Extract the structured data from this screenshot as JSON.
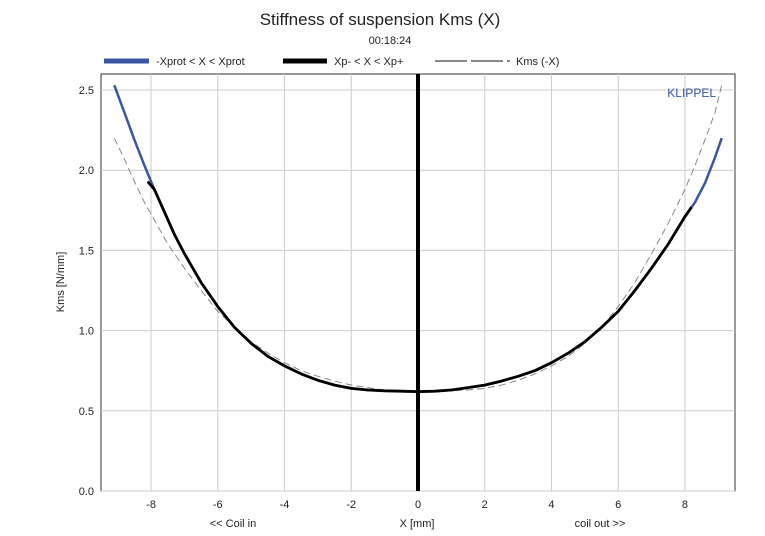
{
  "chart_data": {
    "type": "line",
    "title": "Stiffness of suspension Kms (X)",
    "subtitle": "00:18:24",
    "xlabel": "X [mm]",
    "ylabel": "Kms [N/mm]",
    "x_annotation_left": "<< Coil in",
    "x_annotation_right": "coil out >>",
    "brand": "KLIPPEL",
    "xlim": [
      -9.5,
      9.5
    ],
    "ylim": [
      0,
      2.6
    ],
    "xticks": [
      -8,
      -6,
      -4,
      -2,
      0,
      2,
      4,
      6,
      8
    ],
    "yticks": [
      0.0,
      0.5,
      1.0,
      1.5,
      2.0,
      2.5
    ],
    "xtick_labels": [
      "-8",
      "-6",
      "-4",
      "-2",
      "0",
      "2",
      "4",
      "6",
      "8"
    ],
    "ytick_labels": [
      "0.0",
      "0.5",
      "1.0",
      "1.5",
      "2.0",
      "2.5"
    ],
    "grid": true,
    "legend_position": "top",
    "colors": {
      "blue": "#3a55a4",
      "black": "#000000",
      "gray": "#888888",
      "grid": "#cccccc"
    },
    "series": [
      {
        "name": "-Xprot < X < Xprot",
        "style": "solid-blue",
        "x": [
          -9.1,
          -8.8,
          -8.5,
          -8.2,
          -7.9,
          -7.6,
          -7.3,
          -7.0,
          -6.5,
          -6.0,
          -5.5,
          -5.0,
          -4.5,
          -4.0,
          -3.5,
          -3.0,
          -2.5,
          -2.0,
          -1.5,
          -1.0,
          -0.5,
          0.0,
          0.5,
          1.0,
          1.5,
          2.0,
          2.5,
          3.0,
          3.5,
          4.0,
          4.5,
          5.0,
          5.5,
          6.0,
          6.5,
          7.0,
          7.5,
          8.0,
          8.3,
          8.6,
          8.9,
          9.1
        ],
        "y": [
          2.53,
          2.36,
          2.19,
          2.03,
          1.88,
          1.74,
          1.6,
          1.48,
          1.3,
          1.15,
          1.02,
          0.92,
          0.84,
          0.78,
          0.73,
          0.69,
          0.66,
          0.64,
          0.63,
          0.625,
          0.622,
          0.62,
          0.622,
          0.63,
          0.645,
          0.66,
          0.685,
          0.715,
          0.75,
          0.8,
          0.86,
          0.93,
          1.02,
          1.12,
          1.25,
          1.39,
          1.54,
          1.71,
          1.8,
          1.92,
          2.08,
          2.2
        ]
      },
      {
        "name": "Xp- < X < Xp+",
        "style": "solid-black",
        "x": [
          -8.1,
          -7.9,
          -7.6,
          -7.3,
          -7.0,
          -6.5,
          -6.0,
          -5.5,
          -5.0,
          -4.5,
          -4.0,
          -3.5,
          -3.0,
          -2.5,
          -2.0,
          -1.5,
          -1.0,
          -0.5,
          0.0,
          0.5,
          1.0,
          1.5,
          2.0,
          2.5,
          3.0,
          3.5,
          4.0,
          4.5,
          5.0,
          5.5,
          6.0,
          6.5,
          7.0,
          7.5,
          8.0,
          8.2
        ],
        "y": [
          1.93,
          1.88,
          1.74,
          1.6,
          1.48,
          1.3,
          1.15,
          1.02,
          0.92,
          0.84,
          0.78,
          0.73,
          0.69,
          0.66,
          0.64,
          0.63,
          0.625,
          0.622,
          0.62,
          0.622,
          0.63,
          0.645,
          0.66,
          0.685,
          0.715,
          0.75,
          0.8,
          0.86,
          0.93,
          1.02,
          1.12,
          1.25,
          1.39,
          1.54,
          1.71,
          1.77
        ]
      },
      {
        "name": "Kms (-X)",
        "style": "dashed-gray",
        "x": [
          -9.1,
          -8.8,
          -8.5,
          -8.2,
          -7.9,
          -7.5,
          -7.0,
          -6.5,
          -6.0,
          -5.5,
          -5.0,
          -4.5,
          -4.0,
          -3.5,
          -3.0,
          -2.5,
          -2.0,
          -1.5,
          -1.0,
          -0.5,
          0.0,
          0.5,
          1.0,
          1.5,
          2.0,
          2.5,
          3.0,
          3.5,
          4.0,
          4.5,
          5.0,
          5.5,
          6.0,
          6.5,
          7.0,
          7.5,
          8.0,
          8.3,
          8.6,
          8.9,
          9.1
        ],
        "y": [
          2.2,
          2.07,
          1.93,
          1.8,
          1.69,
          1.54,
          1.39,
          1.25,
          1.12,
          1.02,
          0.93,
          0.86,
          0.8,
          0.75,
          0.715,
          0.685,
          0.66,
          0.645,
          0.63,
          0.622,
          0.62,
          0.622,
          0.625,
          0.63,
          0.64,
          0.66,
          0.69,
          0.73,
          0.78,
          0.84,
          0.92,
          1.02,
          1.15,
          1.3,
          1.48,
          1.67,
          1.88,
          2.03,
          2.19,
          2.36,
          2.53
        ]
      }
    ],
    "vertical_marker": {
      "x": 0,
      "style": "thick-black"
    }
  }
}
